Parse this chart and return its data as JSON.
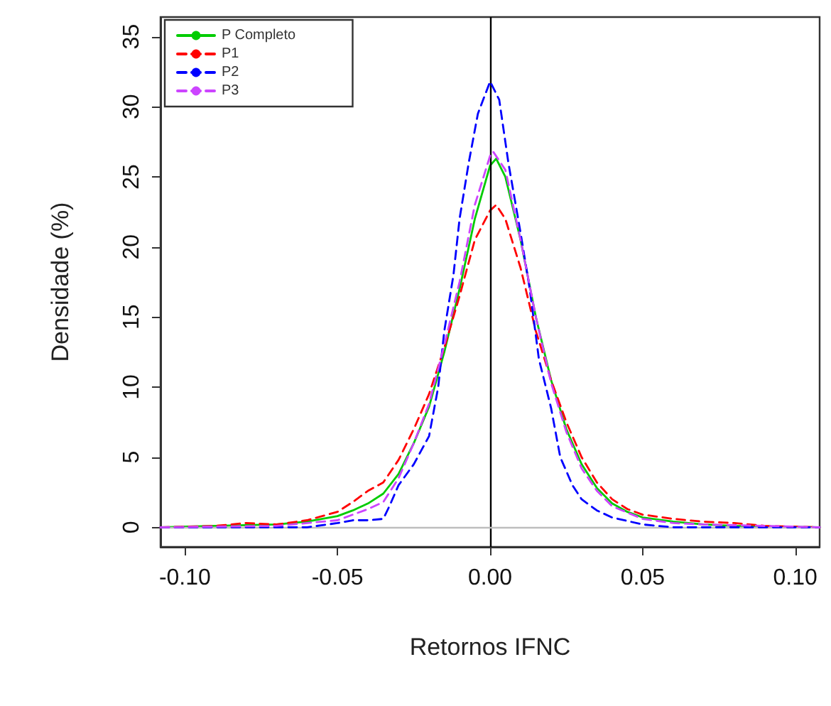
{
  "chart_data": {
    "type": "line",
    "xlabel": "Retornos IFNC",
    "ylabel": "Densidade (%)",
    "xlim": [
      -0.108,
      0.108
    ],
    "ylim": [
      -1.4,
      36.4
    ],
    "xticks": [
      {
        "value": -0.1,
        "label": "-0.10"
      },
      {
        "value": -0.05,
        "label": "-0.05"
      },
      {
        "value": 0,
        "label": "0.00"
      },
      {
        "value": 0.05,
        "label": "0.05"
      },
      {
        "value": 0.1,
        "label": "0.10"
      }
    ],
    "yticks": [
      0,
      5,
      10,
      15,
      20,
      25,
      30,
      35
    ],
    "grid": false,
    "legend": "top left",
    "marker": "none",
    "ref_lines": [
      {
        "axis": "x",
        "value": 0,
        "color": "#000000"
      },
      {
        "axis": "y",
        "value": 0,
        "color": "#bebebe"
      }
    ],
    "series": [
      {
        "name": "P Completo",
        "color": "#00cc00",
        "line_style": "solid",
        "x": [
          -0.108,
          -0.09,
          -0.07,
          -0.06,
          -0.05,
          -0.045,
          -0.04,
          -0.035,
          -0.03,
          -0.025,
          -0.02,
          -0.015,
          -0.01,
          -0.005,
          0,
          0.002,
          0.005,
          0.01,
          0.015,
          0.02,
          0.025,
          0.03,
          0.035,
          0.04,
          0.045,
          0.05,
          0.06,
          0.07,
          0.08,
          0.108
        ],
        "values": [
          0,
          0.1,
          0.2,
          0.4,
          0.8,
          1.2,
          1.7,
          2.4,
          3.8,
          6,
          8.6,
          12.5,
          17,
          22,
          25.8,
          26.3,
          25,
          20.5,
          15,
          10.5,
          7,
          4.5,
          2.8,
          1.7,
          1.1,
          0.7,
          0.4,
          0.2,
          0.1,
          0
        ]
      },
      {
        "name": "P1",
        "color": "#ff0000",
        "line_style": "dashed",
        "x": [
          -0.108,
          -0.09,
          -0.08,
          -0.07,
          -0.06,
          -0.05,
          -0.045,
          -0.04,
          -0.035,
          -0.03,
          -0.025,
          -0.02,
          -0.015,
          -0.01,
          -0.005,
          0,
          0.002,
          0.005,
          0.01,
          0.015,
          0.02,
          0.025,
          0.03,
          0.035,
          0.04,
          0.045,
          0.05,
          0.06,
          0.07,
          0.08,
          0.09,
          0.108
        ],
        "values": [
          0,
          0.1,
          0.3,
          0.2,
          0.5,
          1.1,
          1.8,
          2.6,
          3.2,
          4.8,
          7,
          9.5,
          12.8,
          16.5,
          20.5,
          22.6,
          23,
          22,
          18.5,
          14,
          10.5,
          7.5,
          5,
          3.2,
          2,
          1.3,
          0.9,
          0.6,
          0.4,
          0.3,
          0.1,
          0
        ]
      },
      {
        "name": "P2",
        "color": "#0000ff",
        "line_style": "dashed",
        "x": [
          -0.108,
          -0.06,
          -0.05,
          -0.045,
          -0.04,
          -0.035,
          -0.033,
          -0.03,
          -0.025,
          -0.02,
          -0.017,
          -0.015,
          -0.012,
          -0.01,
          -0.007,
          -0.004,
          0,
          0.003,
          0.006,
          0.01,
          0.013,
          0.016,
          0.02,
          0.023,
          0.027,
          0.03,
          0.035,
          0.04,
          0.05,
          0.06,
          0.108
        ],
        "values": [
          0,
          0,
          0.3,
          0.5,
          0.5,
          0.6,
          1.5,
          3,
          4.5,
          6.5,
          10,
          14,
          18,
          22,
          26,
          29.5,
          31.8,
          30.5,
          26,
          21,
          17,
          12,
          8.5,
          5,
          3,
          2,
          1.2,
          0.7,
          0.2,
          0,
          0
        ]
      },
      {
        "name": "P3",
        "color": "#cc44ff",
        "line_style": "dashed",
        "x": [
          -0.108,
          -0.07,
          -0.05,
          -0.045,
          -0.04,
          -0.035,
          -0.03,
          -0.025,
          -0.02,
          -0.015,
          -0.01,
          -0.005,
          0,
          0.001,
          0.005,
          0.01,
          0.015,
          0.02,
          0.025,
          0.03,
          0.035,
          0.04,
          0.05,
          0.06,
          0.07,
          0.108
        ],
        "values": [
          0,
          0.1,
          0.5,
          0.9,
          1.3,
          1.8,
          3.5,
          6,
          8.8,
          13,
          17.5,
          23,
          26.5,
          26.8,
          25.5,
          20.5,
          15,
          10.3,
          6.8,
          4.2,
          2.6,
          1.5,
          0.6,
          0.3,
          0.2,
          0
        ]
      }
    ]
  }
}
